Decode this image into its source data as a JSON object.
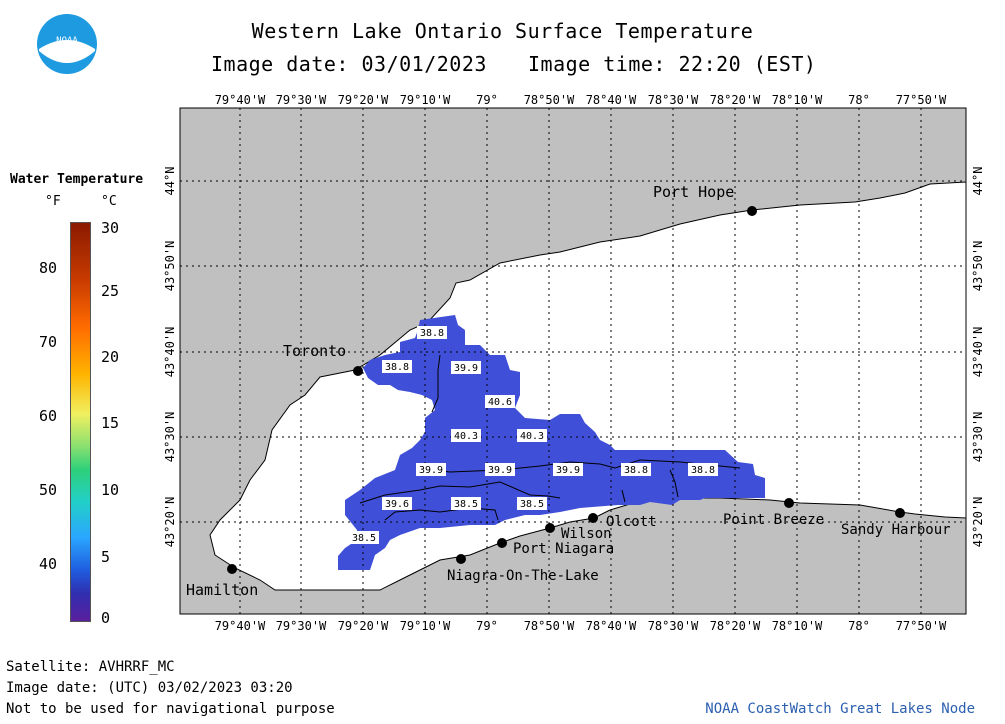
{
  "title": "Western Lake Ontario Surface Temperature",
  "image_date": "Image date: 03/01/2023",
  "image_time": "Image time: 22:20 (EST)",
  "logo_text": "NOAA",
  "legend": {
    "title": "Water Temperature",
    "unit_f": "°F",
    "unit_c": "°C",
    "f_ticks": [
      "80",
      "70",
      "60",
      "50",
      "40"
    ],
    "c_ticks": [
      "30",
      "25",
      "20",
      "15",
      "10",
      "5",
      "0"
    ]
  },
  "longitudes": [
    "79°40'W",
    "79°30'W",
    "79°20'W",
    "79°10'W",
    "79°",
    "78°50'W",
    "78°40'W",
    "78°30'W",
    "78°20'W",
    "78°10'W",
    "78°",
    "77°50'W"
  ],
  "latitudes": [
    "44°N",
    "43°50'N",
    "43°40'N",
    "43°30'N",
    "43°20'N"
  ],
  "places": [
    {
      "name": "Port Hope"
    },
    {
      "name": "Toronto"
    },
    {
      "name": "Hamilton"
    },
    {
      "name": "Niagra-On-The-Lake"
    },
    {
      "name": "Port Niagara"
    },
    {
      "name": "Wilson"
    },
    {
      "name": "Olcott"
    },
    {
      "name": "Point Breeze"
    },
    {
      "name": "Sandy Harbour"
    }
  ],
  "temperature_labels": [
    "38.8",
    "38.8",
    "39.9",
    "40.6",
    "40.3",
    "40.3",
    "39.9",
    "39.9",
    "39.9",
    "38.8",
    "38.8",
    "39.6",
    "38.5",
    "38.5",
    "38.5"
  ],
  "colors": {
    "land": "#c0c0c0",
    "water": "#ffffff",
    "cloud_free_water": "#3f4fd8",
    "accent": "#2b5fb0"
  },
  "footer": {
    "satellite": "Satellite: AVHRRF_MC",
    "utc_date": "Image date: (UTC) 03/02/2023  03:20",
    "disclaimer": "Not to be used for navigational purpose",
    "credit": "NOAA CoastWatch Great Lakes Node"
  }
}
